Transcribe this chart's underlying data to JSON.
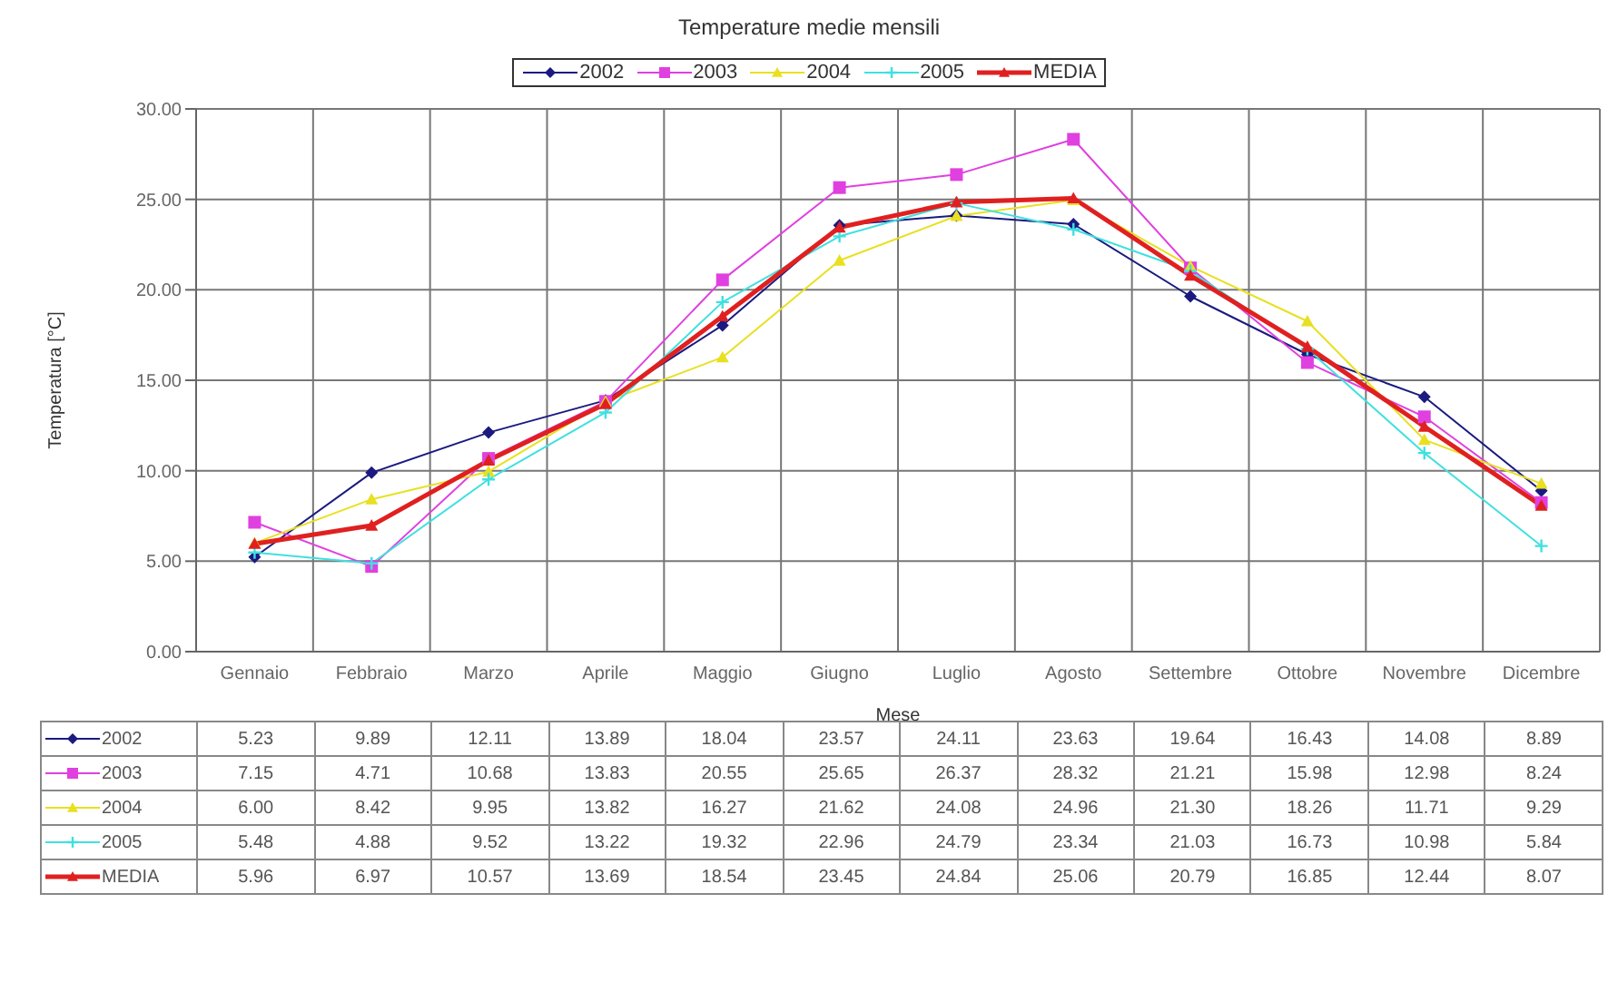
{
  "chart_data": {
    "type": "line",
    "title": "Temperature medie mensili",
    "xlabel": "Mese",
    "ylabel": "Temperatura [°C]",
    "categories": [
      "Gennaio",
      "Febbraio",
      "Marzo",
      "Aprile",
      "Maggio",
      "Giugno",
      "Luglio",
      "Agosto",
      "Settembre",
      "Ottobre",
      "Novembre",
      "Dicembre"
    ],
    "series": [
      {
        "name": "2002",
        "color": "#1a1a80",
        "marker": "diamond",
        "values": [
          5.23,
          9.89,
          12.11,
          13.89,
          18.04,
          23.57,
          24.11,
          23.63,
          19.64,
          16.43,
          14.08,
          8.89
        ],
        "value_labels": [
          "5.23",
          "9.89",
          "12.11",
          "13.89",
          "18.04",
          "23.57",
          "24.11",
          "23.63",
          "19.64",
          "16.43",
          "14.08",
          "8.89"
        ]
      },
      {
        "name": "2003",
        "color": "#e040e0",
        "marker": "square",
        "values": [
          7.15,
          4.71,
          10.68,
          13.83,
          20.55,
          25.65,
          26.37,
          28.32,
          21.21,
          15.98,
          12.98,
          8.24
        ],
        "value_labels": [
          "7.15",
          "4.71",
          "10.68",
          "13.83",
          "20.55",
          "25.65",
          "26.37",
          "28.32",
          "21.21",
          "15.98",
          "12.98",
          "8.24"
        ]
      },
      {
        "name": "2004",
        "color": "#e8e020",
        "marker": "triangle",
        "values": [
          6.0,
          8.42,
          9.95,
          13.82,
          16.27,
          21.62,
          24.08,
          24.96,
          21.3,
          18.26,
          11.71,
          9.29
        ],
        "value_labels": [
          "6.00",
          "8.42",
          "9.95",
          "13.82",
          "16.27",
          "21.62",
          "24.08",
          "24.96",
          "21.30",
          "18.26",
          "11.71",
          "9.29"
        ]
      },
      {
        "name": "2005",
        "color": "#40e0e0",
        "marker": "cross",
        "values": [
          5.48,
          4.88,
          9.52,
          13.22,
          19.32,
          22.96,
          24.79,
          23.34,
          21.03,
          16.73,
          10.98,
          5.84
        ],
        "value_labels": [
          "5.48",
          "4.88",
          "9.52",
          "13.22",
          "19.32",
          "22.96",
          "24.79",
          "23.34",
          "21.03",
          "16.73",
          "10.98",
          "5.84"
        ]
      },
      {
        "name": "MEDIA",
        "color": "#e02020",
        "marker": "triangle",
        "values": [
          5.96,
          6.97,
          10.57,
          13.69,
          18.54,
          23.45,
          24.84,
          25.06,
          20.79,
          16.85,
          12.44,
          8.07
        ],
        "value_labels": [
          "5.96",
          "6.97",
          "10.57",
          "13.69",
          "18.54",
          "23.45",
          "24.84",
          "25.06",
          "20.79",
          "16.85",
          "12.44",
          "8.07"
        ]
      }
    ],
    "ylim": [
      0,
      30
    ],
    "yticks": [
      {
        "value": 0,
        "label": "0.00"
      },
      {
        "value": 5,
        "label": "5.00"
      },
      {
        "value": 10,
        "label": "10.00"
      },
      {
        "value": 15,
        "label": "15.00"
      },
      {
        "value": 20,
        "label": "20.00"
      },
      {
        "value": 25,
        "label": "25.00"
      },
      {
        "value": 30,
        "label": "30.00"
      }
    ],
    "grid": true,
    "legend": "top",
    "line_style": "solid"
  }
}
